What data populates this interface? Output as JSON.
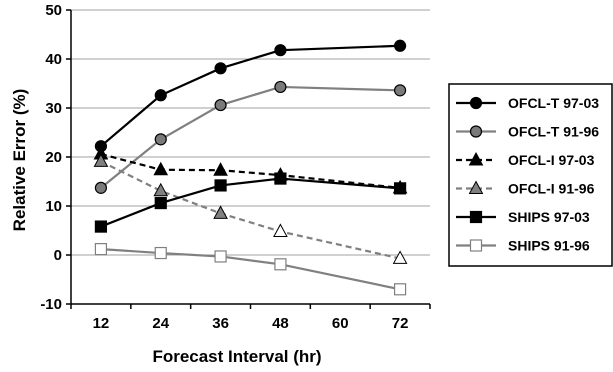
{
  "chart_data": {
    "type": "line",
    "xlabel": "Forecast Interval (hr)",
    "ylabel": "Relative Error (%)",
    "x_ticks": [
      "12",
      "24",
      "36",
      "48",
      "60",
      "72"
    ],
    "y_ticks": [
      "-10",
      "0",
      "10",
      "20",
      "30",
      "40",
      "50"
    ],
    "xlim": [
      6,
      78
    ],
    "ylim": [
      -10,
      50
    ],
    "grid": "horizontal",
    "legend_position": "right",
    "series": [
      {
        "name": "OFCL-T 97-03",
        "marker": "circle",
        "fill": "#000000",
        "stroke": "#000000",
        "line_color": "#000000",
        "dash": "solid",
        "x": [
          12,
          24,
          36,
          48,
          72
        ],
        "y": [
          22.2,
          32.6,
          38.1,
          41.8,
          42.7
        ]
      },
      {
        "name": "OFCL-T 91-96",
        "marker": "circle",
        "fill": "#7a7a7a",
        "stroke": "#000000",
        "line_color": "#808080",
        "dash": "solid",
        "x": [
          12,
          24,
          36,
          48,
          72
        ],
        "y": [
          13.7,
          23.6,
          30.6,
          34.3,
          33.6
        ]
      },
      {
        "name": "OFCL-I 97-03",
        "marker": "triangle",
        "fill": "#000000",
        "stroke": "#000000",
        "line_color": "#000000",
        "dash": "dashed",
        "x": [
          12,
          24,
          36,
          48,
          72
        ],
        "y": [
          20.6,
          17.4,
          17.3,
          16.3,
          13.7
        ]
      },
      {
        "name": "OFCL-I 91-96",
        "marker": "triangle",
        "fill": "#808080",
        "stroke": "#000000",
        "line_color": "#808080",
        "dash": "dashed",
        "x": [
          12,
          24,
          36,
          48,
          72
        ],
        "y": [
          19.1,
          13.1,
          8.5,
          4.8,
          -0.7
        ],
        "marker_fills": [
          "#808080",
          "#808080",
          "#808080",
          "#ffffff",
          "#ffffff"
        ]
      },
      {
        "name": "SHIPS 97-03",
        "marker": "square",
        "fill": "#000000",
        "stroke": "#000000",
        "line_color": "#000000",
        "dash": "solid",
        "x": [
          12,
          24,
          36,
          48,
          72
        ],
        "y": [
          5.8,
          10.6,
          14.2,
          15.6,
          13.6
        ]
      },
      {
        "name": "SHIPS 91-96",
        "marker": "square",
        "fill": "#ffffff",
        "stroke": "#808080",
        "line_color": "#808080",
        "dash": "solid",
        "x": [
          12,
          24,
          36,
          48,
          72
        ],
        "y": [
          1.2,
          0.4,
          -0.3,
          -1.9,
          -7.0
        ]
      }
    ]
  }
}
